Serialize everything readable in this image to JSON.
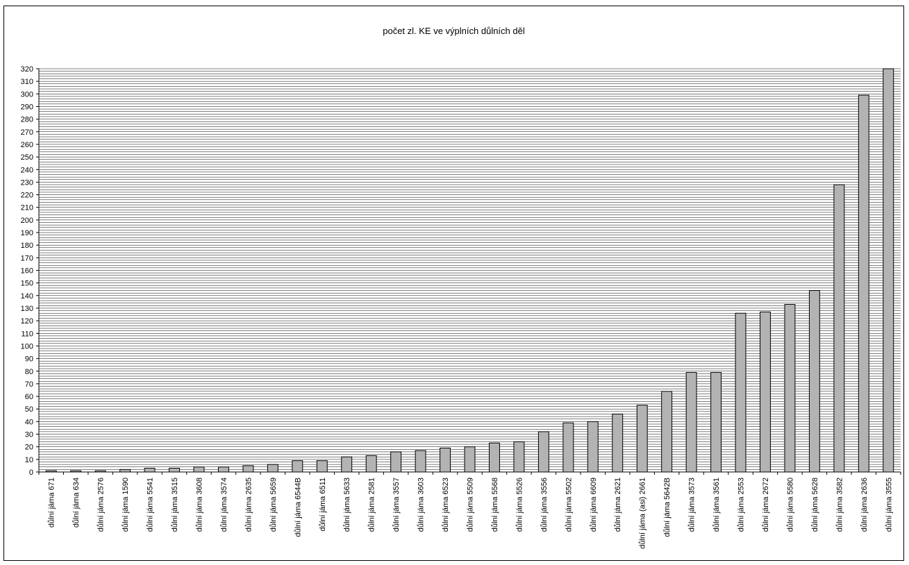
{
  "chart_data": {
    "type": "bar",
    "title": "počet zl. KE ve výplních důlních děl",
    "xlabel": "",
    "ylabel": "",
    "ylim": [
      0,
      320
    ],
    "ytick_step": 10,
    "grid": true,
    "bar_color": "#b3b3b3",
    "categories": [
      "důlní jáma 671",
      "důlní jáma 634",
      "důlní jáma 2576",
      "důlní jáma 1590",
      "důlní jáma 5541",
      "důlní jáma 3515",
      "důlní jáma 3608",
      "důlní jáma 3574",
      "důlní jáma 2635",
      "důlní jáma 5659",
      "důlní jáma 6544B",
      "důlní jáma 6511",
      "důlní jáma 5633",
      "důlní jáma 2581",
      "důlní jáma 3557",
      "důlní jáma 3603",
      "důlní jáma 6523",
      "důlní jáma 5509",
      "důlní jáma 5568",
      "důlní jáma 5526",
      "důlní jáma 3556",
      "důlní jáma 5502",
      "důlní jáma 6609",
      "důlní jáma 2621",
      "důlní jáma (asi) 2661",
      "důlní jáma 5642B",
      "důlní jáma 3573",
      "důlní jáma 3561",
      "důlní jáma 2553",
      "důlní jáma 2672",
      "důlní jáma 5580",
      "důlní jáma 5628",
      "důlní jáma 3582",
      "důlní jáma 2636",
      "důlní jáma 3555"
    ],
    "values": [
      1,
      1,
      1,
      2,
      3,
      3,
      4,
      4,
      5,
      6,
      9,
      9,
      12,
      13,
      16,
      17,
      19,
      20,
      23,
      24,
      32,
      39,
      40,
      46,
      53,
      64,
      79,
      79,
      126,
      127,
      133,
      144,
      228,
      299,
      320
    ]
  }
}
